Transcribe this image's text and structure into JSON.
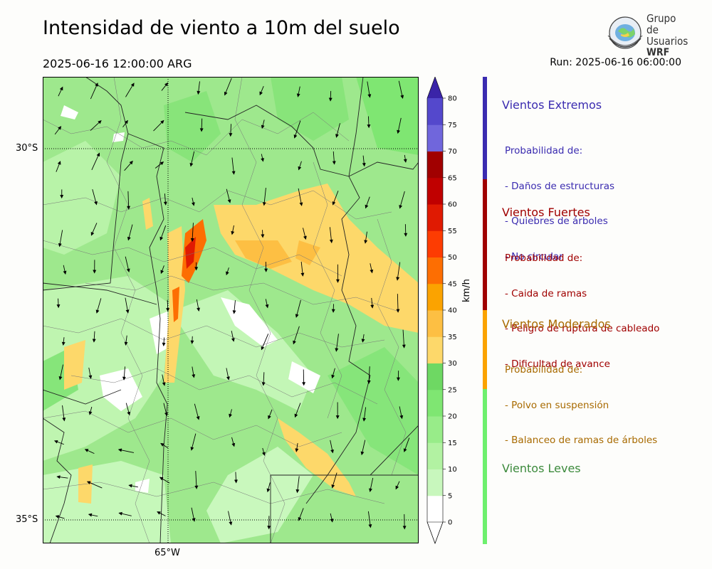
{
  "title": "Intensidad de viento a 10m del suelo",
  "valid_time": "2025-06-16 12:00:00 ARG",
  "run": "Run: 2025-06-16 06:00:00",
  "logo": {
    "line1": "Grupo de",
    "line2": "Usuarios",
    "line3": "WRF"
  },
  "map": {
    "lat_labels": [
      "30°S",
      "35°S"
    ],
    "lon_labels": [
      "65°W"
    ]
  },
  "colorbar": {
    "unit": "km/h",
    "levels": [
      "0",
      "5",
      "10",
      "15",
      "20",
      "25",
      "30",
      "35",
      "40",
      "45",
      "50",
      "55",
      "60",
      "65",
      "70",
      "75",
      "80"
    ],
    "colors": [
      "#ffffff",
      "#c8f7bd",
      "#b2f2a2",
      "#98ec89",
      "#7fe672",
      "#6ed863",
      "#fdd86a",
      "#fdbf43",
      "#fba300",
      "#fd6e02",
      "#fd3c02",
      "#e01a02",
      "#c00000",
      "#a10000",
      "#7066dc",
      "#5448cc",
      "#4130b4",
      "#3a24a8"
    ]
  },
  "categories": [
    {
      "name": "Vientos Extremos",
      "color": "#3a2bb0",
      "desc": [
        "Probabilidad de:",
        "- Daños de estructuras",
        "- Quiebres de árboles",
        "- No circular"
      ]
    },
    {
      "name": "Vientos Fuertes",
      "color": "#a00000",
      "desc": [
        "Probabilidad de:",
        "- Caida de ramas",
        "- Peligro de ruptura de cableado",
        "- Dificultad de avance"
      ]
    },
    {
      "name": "Vientos Moderados",
      "color": "#a86a00",
      "desc": [
        "Probabilidad de:",
        "- Polvo en suspensión",
        "- Balanceo de ramas de árboles"
      ]
    },
    {
      "name": "Vientos Leves",
      "color": "#3c8a3c",
      "desc": []
    }
  ],
  "side_bar_colors": [
    "#3a2bb0",
    "#a00000",
    "#fba300",
    "#6ef06e"
  ]
}
